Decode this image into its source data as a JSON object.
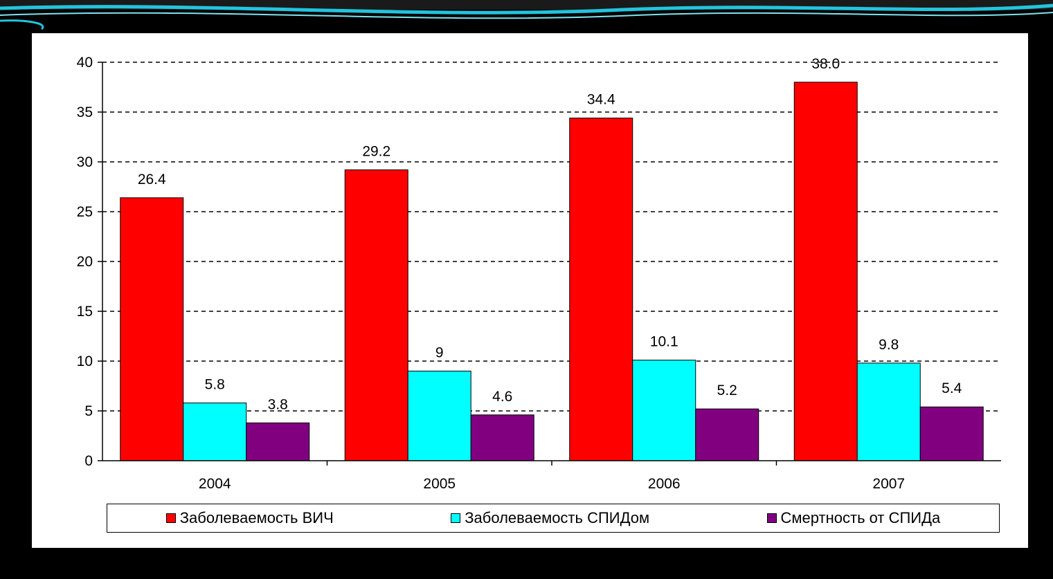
{
  "colors": {
    "page_background": "#000000",
    "chart_background": "#ffffff",
    "decoration_accent": "#22c4dd"
  },
  "chart_data": {
    "type": "bar",
    "categories": [
      "2004",
      "2005",
      "2006",
      "2007"
    ],
    "series": [
      {
        "name": "Заболеваемость ВИЧ",
        "color": "#ff0000",
        "values": [
          26.4,
          29.2,
          34.4,
          38.0
        ],
        "value_labels": [
          "26.4",
          "29.2",
          "34.4",
          "38.0"
        ]
      },
      {
        "name": "Заболеваемость СПИДом",
        "color": "#00ffff",
        "values": [
          5.8,
          9,
          10.1,
          9.8
        ],
        "value_labels": [
          "5.8",
          "9",
          "10.1",
          "9.8"
        ]
      },
      {
        "name": "Смертность от СПИДа",
        "color": "#800080",
        "values": [
          3.8,
          4.6,
          5.2,
          5.4
        ],
        "value_labels": [
          "3.8",
          "4.6",
          "5.2",
          "5.4"
        ]
      }
    ],
    "y_ticks": [
      "0",
      "5",
      "10",
      "15",
      "20",
      "25",
      "30",
      "35",
      "40"
    ],
    "ylim": [
      0,
      40
    ],
    "grid": "dashed horizontal",
    "legend_position": "bottom"
  }
}
